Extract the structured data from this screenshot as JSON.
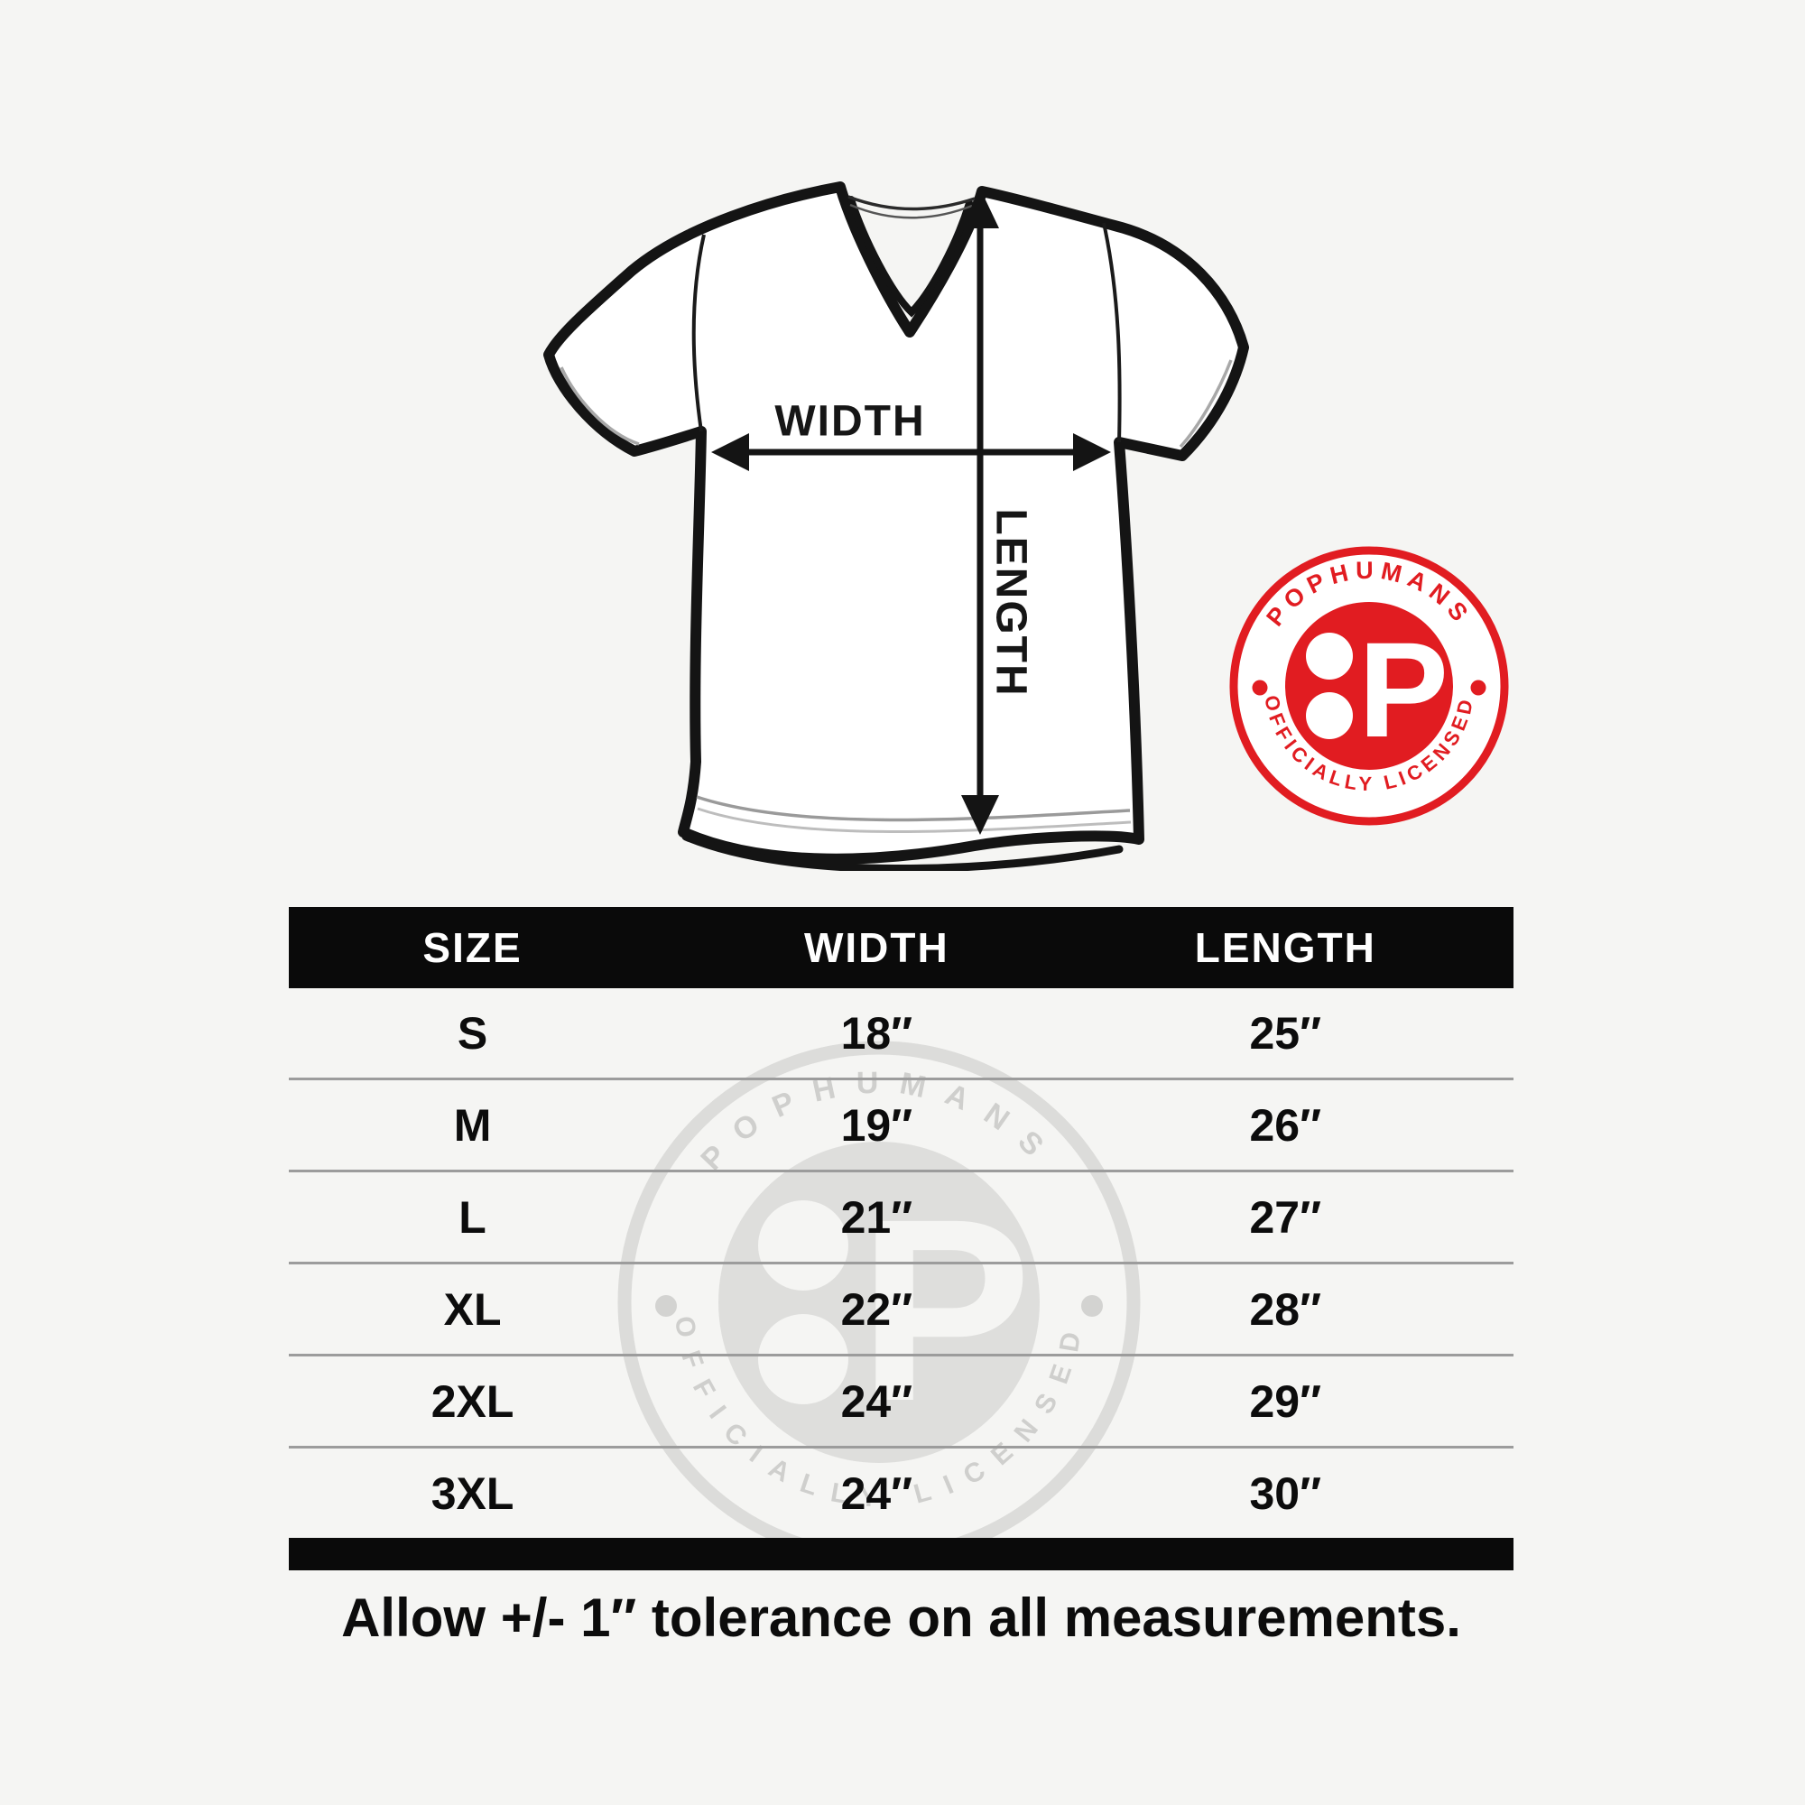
{
  "page": {
    "background": "#f5f5f3",
    "accent_red": "#e11c21",
    "table_black": "#0a0a0a",
    "divider_gray": "#9c9c9c"
  },
  "diagram": {
    "width_label": "WIDTH",
    "length_label": "LENGTH"
  },
  "badge": {
    "top_text": "POPHUMANS",
    "bottom_text": "OFFICIALLY LICENSED",
    "logo_letter": "P",
    "red": "#e11c21"
  },
  "size_table": {
    "headers": [
      "SIZE",
      "WIDTH",
      "LENGTH"
    ],
    "rows": [
      {
        "size": "S",
        "width": "18″",
        "length": "25″"
      },
      {
        "size": "M",
        "width": "19″",
        "length": "26″"
      },
      {
        "size": "L",
        "width": "21″",
        "length": "27″"
      },
      {
        "size": "XL",
        "width": "22″",
        "length": "28″"
      },
      {
        "size": "2XL",
        "width": "24″",
        "length": "29″"
      },
      {
        "size": "3XL",
        "width": "24″",
        "length": "30″"
      }
    ]
  },
  "note": "Allow +/- 1″ tolerance on all measurements.",
  "chart_data": {
    "type": "table",
    "columns": [
      "SIZE",
      "WIDTH",
      "LENGTH"
    ],
    "rows": [
      [
        "S",
        "18″",
        "25″"
      ],
      [
        "M",
        "19″",
        "26″"
      ],
      [
        "L",
        "21″",
        "27″"
      ],
      [
        "XL",
        "22″",
        "28″"
      ],
      [
        "2XL",
        "24″",
        "29″"
      ],
      [
        "3XL",
        "24″",
        "30″"
      ]
    ],
    "note": "Allow +/- 1″ tolerance on all measurements."
  }
}
